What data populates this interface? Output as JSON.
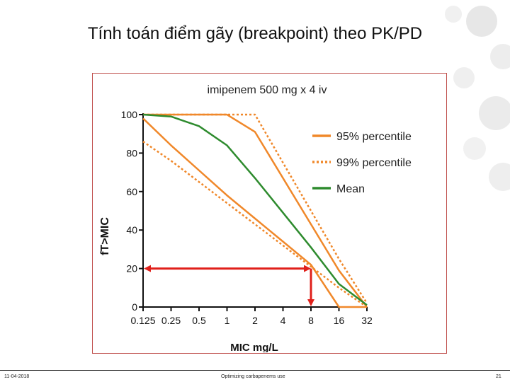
{
  "slide": {
    "title": "Tính toán điểm gãy (breakpoint) theo PK/PD",
    "footer_date": "11-04-2018",
    "footer_center": "Optimizing carbapenems use",
    "page_number": "21"
  },
  "chart_data": {
    "type": "line",
    "title": "imipenem 500 mg x 4 iv",
    "xlabel": "MIC mg/L",
    "ylabel": "fT>MIC",
    "x_scale": "log2",
    "categories": [
      "0.125",
      "0.25",
      "0.5",
      "1",
      "2",
      "4",
      "8",
      "16",
      "32"
    ],
    "x": [
      0.125,
      0.25,
      0.5,
      1,
      2,
      4,
      8,
      16,
      32
    ],
    "ylim": [
      0,
      100
    ],
    "yticks": [
      0,
      20,
      40,
      60,
      80,
      100
    ],
    "legend_position": "top-right",
    "series": [
      {
        "name": "95% percentile",
        "style": "solid",
        "color": "#f0882a",
        "values": [
          100,
          100,
          100,
          100,
          91,
          67,
          43,
          19,
          0
        ]
      },
      {
        "name": "95% percentile",
        "style": "solid",
        "color": "#f0882a",
        "values": [
          98,
          84,
          71,
          58,
          46,
          34,
          22,
          0,
          0
        ]
      },
      {
        "name": "99% percentile",
        "style": "dotted",
        "color": "#f0882a",
        "values": [
          100,
          100,
          100,
          100,
          100,
          75,
          50,
          25,
          2
        ]
      },
      {
        "name": "99% percentile",
        "style": "dotted",
        "color": "#f0882a",
        "values": [
          86,
          76,
          65,
          54,
          43,
          32,
          21,
          10,
          0
        ]
      },
      {
        "name": "Mean",
        "style": "solid",
        "color": "#2e8b2e",
        "values": [
          100,
          99,
          94,
          84,
          67,
          49,
          31,
          12,
          1
        ]
      }
    ],
    "legend": [
      {
        "label": "95% percentile",
        "style": "solid",
        "color": "#f0882a"
      },
      {
        "label": "99% percentile",
        "style": "dotted",
        "color": "#f0882a"
      },
      {
        "label": "Mean",
        "style": "solid",
        "color": "#2e8b2e"
      }
    ],
    "annotation": {
      "color": "#e0201b",
      "y_target": 20,
      "x_breakpoint": 8
    }
  }
}
